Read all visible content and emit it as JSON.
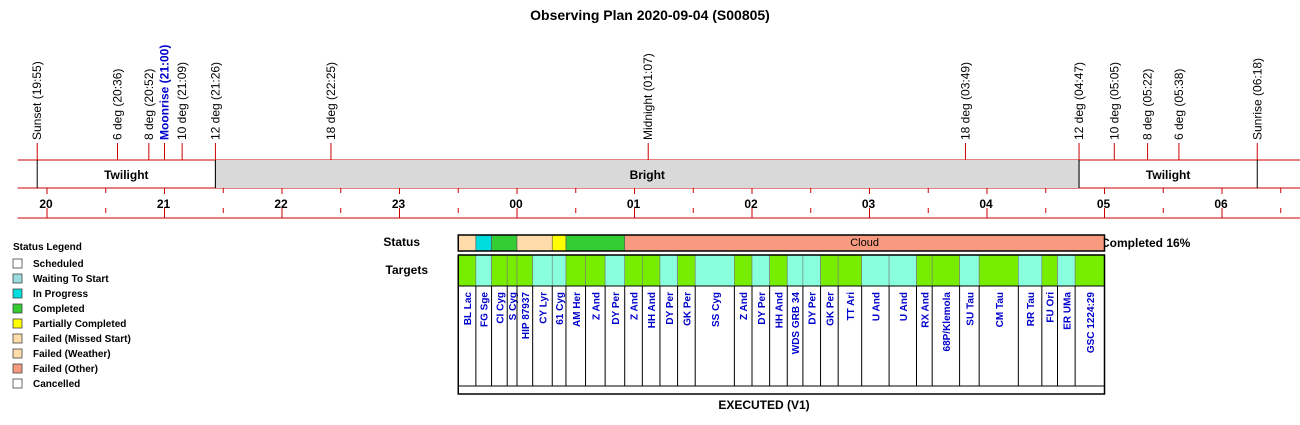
{
  "title": "Observing Plan 2020-09-04 (S00805)",
  "colors": {
    "axis": "#cc0000",
    "event_text": "#000000",
    "moon_text": "#0000cc",
    "target_text": "#0000cc",
    "bright_fill": "#d9d9d9",
    "scheduled": "#ffffff",
    "waiting": "#99dddd",
    "in_progress": "#00dddd",
    "completed": "#33cc33",
    "partial": "#ffff00",
    "missed": "#ffdcaa",
    "weather": "#ffddaa",
    "other": "#f79a80",
    "cancelled": "#ffffff",
    "target_green": "#77ee00",
    "target_cyan": "#88ffdd"
  },
  "events": [
    {
      "label": "Sunset (19:55)",
      "t": "19:55",
      "moon": false
    },
    {
      "label": "6 deg (20:36)",
      "t": "20:36",
      "moon": false
    },
    {
      "label": "8 deg (20:52)",
      "t": "20:52",
      "moon": false
    },
    {
      "label": "Moonrise (21:00)",
      "t": "21:00",
      "moon": true
    },
    {
      "label": "10 deg (21:09)",
      "t": "21:09",
      "moon": false
    },
    {
      "label": "12 deg (21:26)",
      "t": "21:26",
      "moon": false
    },
    {
      "label": "18 deg (22:25)",
      "t": "22:25",
      "moon": false
    },
    {
      "label": "Midnight (01:07)",
      "t": "01:07",
      "moon": false
    },
    {
      "label": "18 deg (03:49)",
      "t": "03:49",
      "moon": false
    },
    {
      "label": "12 deg (04:47)",
      "t": "04:47",
      "moon": false
    },
    {
      "label": "10 deg (05:05)",
      "t": "05:05",
      "moon": false
    },
    {
      "label": "8 deg (05:22)",
      "t": "05:22",
      "moon": false
    },
    {
      "label": "6 deg (05:38)",
      "t": "05:38",
      "moon": false
    },
    {
      "label": "Sunrise (06:18)",
      "t": "06:18",
      "moon": false
    }
  ],
  "periods": [
    {
      "label": "Twilight",
      "start": "19:55",
      "end": "21:26",
      "shaded": false
    },
    {
      "label": "Bright",
      "start": "21:26",
      "end": "04:47",
      "shaded": true
    },
    {
      "label": "Twilight",
      "start": "04:47",
      "end": "06:18",
      "shaded": false
    }
  ],
  "hour_labels": [
    "20",
    "21",
    "22",
    "23",
    "00",
    "01",
    "02",
    "03",
    "04",
    "05",
    "06"
  ],
  "axis_range": [
    "19:45",
    "06:40"
  ],
  "status_row": {
    "label": "Status",
    "completed_text": "Completed 16%",
    "segments": [
      {
        "start": "23:30",
        "end": "23:39",
        "status": "missed",
        "label": ""
      },
      {
        "start": "23:39",
        "end": "23:47",
        "status": "in_progress",
        "label": ""
      },
      {
        "start": "23:47",
        "end": "00:00",
        "status": "completed",
        "label": ""
      },
      {
        "start": "00:00",
        "end": "00:18",
        "status": "missed",
        "label": ""
      },
      {
        "start": "00:18",
        "end": "00:25",
        "status": "partial",
        "label": ""
      },
      {
        "start": "00:25",
        "end": "00:55",
        "status": "completed",
        "label": ""
      },
      {
        "start": "00:55",
        "end": "05:00",
        "status": "other",
        "label": "Cloud"
      }
    ]
  },
  "targets_row": {
    "label": "Targets",
    "footer": "EXECUTED (V1)",
    "items": [
      {
        "name": "BL Lac",
        "start": "23:30",
        "end": "23:39",
        "color": "green"
      },
      {
        "name": "FG Sge",
        "start": "23:39",
        "end": "23:47",
        "color": "cyan"
      },
      {
        "name": "CI Cyg",
        "start": "23:47",
        "end": "23:55",
        "color": "green"
      },
      {
        "name": "S Cyg",
        "start": "23:55",
        "end": "00:00",
        "color": "green"
      },
      {
        "name": "HIP 87937",
        "start": "00:00",
        "end": "00:08",
        "color": "green"
      },
      {
        "name": "CY Lyr",
        "start": "00:08",
        "end": "00:18",
        "color": "cyan"
      },
      {
        "name": "61 Cyg",
        "start": "00:18",
        "end": "00:25",
        "color": "cyan"
      },
      {
        "name": "AM Her",
        "start": "00:25",
        "end": "00:35",
        "color": "green"
      },
      {
        "name": "Z And",
        "start": "00:35",
        "end": "00:45",
        "color": "green"
      },
      {
        "name": "DY Per",
        "start": "00:45",
        "end": "00:55",
        "color": "cyan"
      },
      {
        "name": "Z And",
        "start": "00:55",
        "end": "01:04",
        "color": "green"
      },
      {
        "name": "HH And",
        "start": "01:04",
        "end": "01:13",
        "color": "green"
      },
      {
        "name": "DY Per",
        "start": "01:13",
        "end": "01:22",
        "color": "cyan"
      },
      {
        "name": "GK Per",
        "start": "01:22",
        "end": "01:31",
        "color": "green"
      },
      {
        "name": "SS Cyg",
        "start": "01:31",
        "end": "01:51",
        "color": "cyan"
      },
      {
        "name": "Z And",
        "start": "01:51",
        "end": "02:00",
        "color": "green"
      },
      {
        "name": "DY Per",
        "start": "02:00",
        "end": "02:09",
        "color": "cyan"
      },
      {
        "name": "HH And",
        "start": "02:09",
        "end": "02:18",
        "color": "green"
      },
      {
        "name": "WDS GRB 34",
        "start": "02:18",
        "end": "02:26",
        "color": "cyan"
      },
      {
        "name": "DY Per",
        "start": "02:26",
        "end": "02:35",
        "color": "cyan"
      },
      {
        "name": "GK Per",
        "start": "02:35",
        "end": "02:44",
        "color": "green"
      },
      {
        "name": "TT Ari",
        "start": "02:44",
        "end": "02:56",
        "color": "green"
      },
      {
        "name": "U And",
        "start": "02:56",
        "end": "03:10",
        "color": "cyan"
      },
      {
        "name": "U And",
        "start": "03:10",
        "end": "03:24",
        "color": "cyan"
      },
      {
        "name": "RX And",
        "start": "03:24",
        "end": "03:32",
        "color": "green"
      },
      {
        "name": "68P/Klemola",
        "start": "03:32",
        "end": "03:46",
        "color": "green"
      },
      {
        "name": "SU Tau",
        "start": "03:46",
        "end": "03:56",
        "color": "cyan"
      },
      {
        "name": "CM Tau",
        "start": "03:56",
        "end": "04:16",
        "color": "green"
      },
      {
        "name": "RR Tau",
        "start": "04:16",
        "end": "04:28",
        "color": "cyan"
      },
      {
        "name": "FU Ori",
        "start": "04:28",
        "end": "04:36",
        "color": "green"
      },
      {
        "name": "ER UMa",
        "start": "04:36",
        "end": "04:45",
        "color": "cyan"
      },
      {
        "name": "GSC 1224:29",
        "start": "04:45",
        "end": "05:00",
        "color": "green"
      }
    ]
  },
  "legend": {
    "title": "Status Legend",
    "items": [
      {
        "label": "Scheduled",
        "key": "scheduled"
      },
      {
        "label": "Waiting To Start",
        "key": "waiting"
      },
      {
        "label": "In Progress",
        "key": "in_progress"
      },
      {
        "label": "Completed",
        "key": "completed"
      },
      {
        "label": "Partially Completed",
        "key": "partial"
      },
      {
        "label": "Failed (Missed Start)",
        "key": "missed"
      },
      {
        "label": "Failed (Weather)",
        "key": "weather"
      },
      {
        "label": "Failed (Other)",
        "key": "other"
      },
      {
        "label": "Cancelled",
        "key": "cancelled"
      }
    ]
  },
  "chart_data": {
    "type": "timeline",
    "title": "Observing Plan 2020-09-04 (S00805)",
    "x_axis": {
      "unit": "hour (local)",
      "range": [
        "19:45",
        "06:40"
      ],
      "ticks": [
        "20",
        "21",
        "22",
        "23",
        "00",
        "01",
        "02",
        "03",
        "04",
        "05",
        "06"
      ]
    },
    "grid": false,
    "legend_position": "left"
  }
}
